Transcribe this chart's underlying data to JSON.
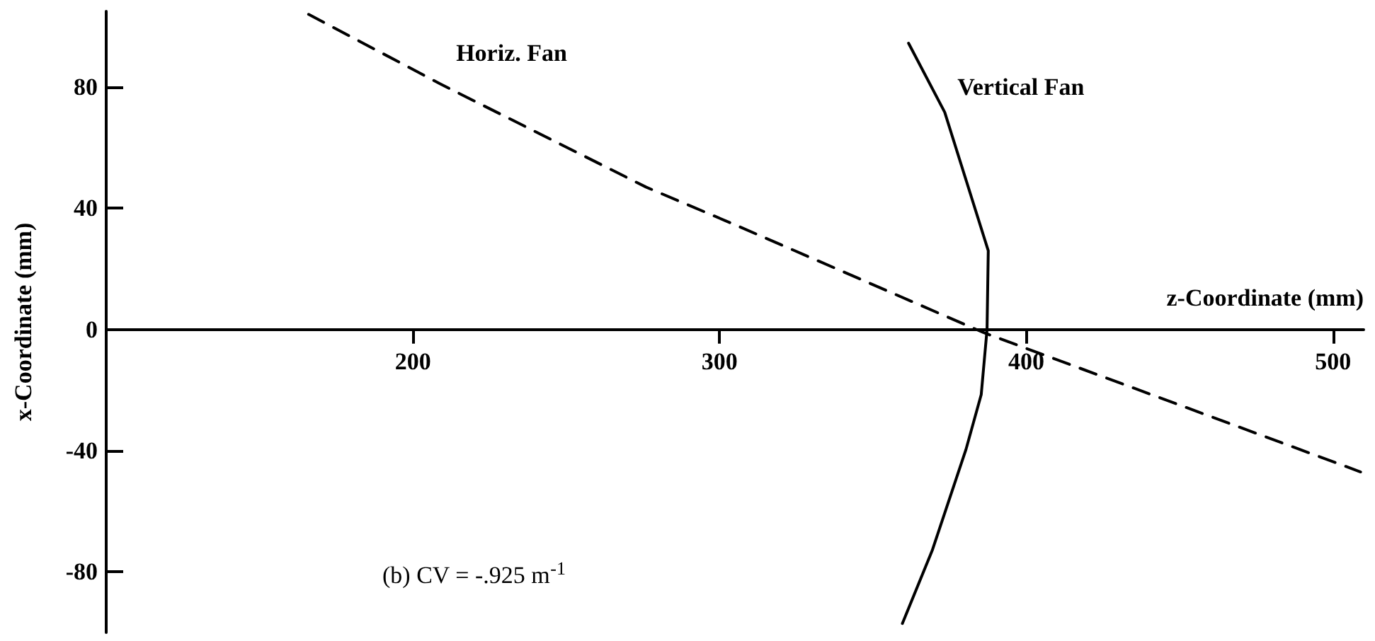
{
  "chart_data": {
    "type": "line",
    "xlabel": "z-Coordinate (mm)",
    "ylabel": "x-Coordinate (mm)",
    "xlim": [
      100,
      510
    ],
    "xticks": [
      200,
      300,
      400,
      500
    ],
    "ylim": [
      -100,
      105
    ],
    "yticks": [
      -80,
      -40,
      0,
      40,
      80
    ],
    "grid": false,
    "legend": false,
    "marker": "none",
    "annotations": [
      "(b) CV = -.925 m$^{-1}$"
    ],
    "series": [
      {
        "name": "Horiz. Fan",
        "color": "#000000",
        "line_style": "dashed",
        "x": [
          166,
          209,
          276,
          304,
          386,
          509
        ],
        "values": [
          104,
          81,
          47,
          35,
          -1,
          -47
        ]
      },
      {
        "name": "Vertical Fan",
        "color": "#000000",
        "line_style": "solid",
        "x": [
          361.6,
          373.4,
          387.6,
          387.2,
          385.3,
          380.3,
          369.3,
          359.6
        ],
        "values": [
          94.5,
          71.7,
          26,
          0,
          -21.5,
          -39.7,
          -73,
          -97
        ]
      }
    ]
  }
}
